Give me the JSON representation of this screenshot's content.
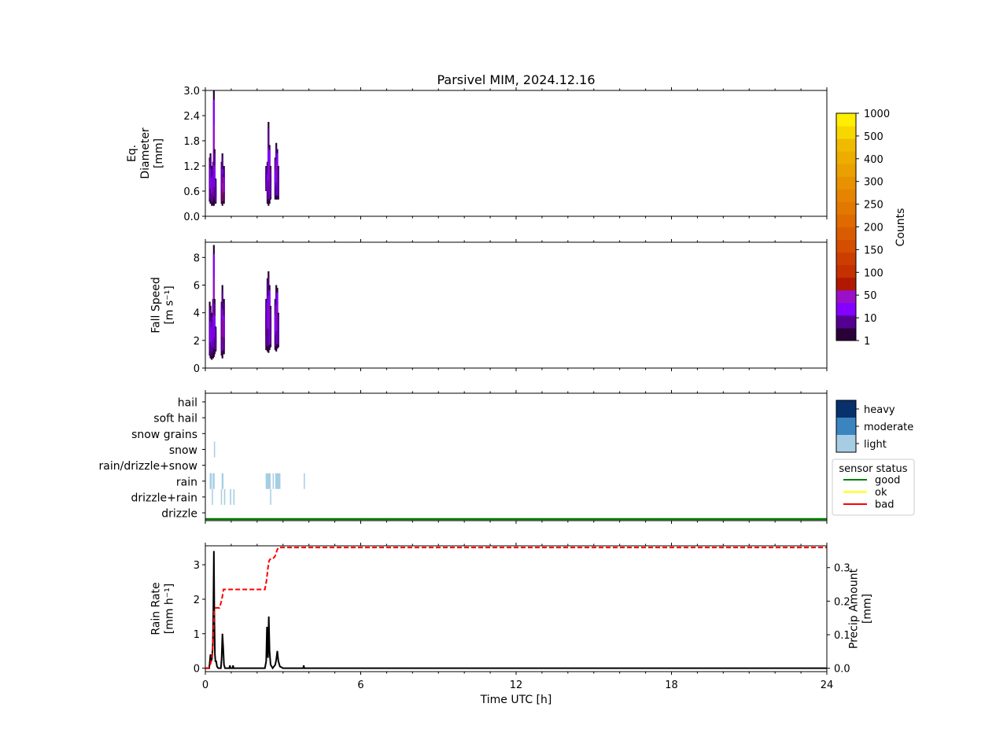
{
  "title": "Parsivel MIM, 2024.12.16",
  "colors": {
    "counts_cmap": [
      "#2a0038",
      "#540090",
      "#8400ff",
      "#9a10c8",
      "#b01800",
      "#c43000",
      "#cc3e00",
      "#d44e00",
      "#da5c00",
      "#de6a00",
      "#e27800",
      "#e68400",
      "#e89200",
      "#eaa000",
      "#edac00",
      "#f0ba00",
      "#f6d800",
      "#ffee00"
    ],
    "intensity_light": "#a6cde4",
    "intensity_moderate": "#3a85c0",
    "intensity_heavy": "#08306b",
    "status_good": "#008000",
    "status_ok": "#ffff00",
    "status_bad": "#ff0000"
  },
  "chart_data": [
    {
      "type": "heatmap",
      "panel": "diameter",
      "ylabel": [
        "Eq.",
        "Diameter",
        "[mm]"
      ],
      "xlim": [
        0,
        24
      ],
      "ylim": [
        0,
        3.0
      ],
      "yticks": [
        "0.0",
        "0.6",
        "1.2",
        "1.8",
        "2.4",
        "3.0"
      ],
      "ytick_values": [
        0,
        0.6,
        1.2,
        1.8,
        2.4,
        3.0
      ],
      "columns": [
        {
          "x": 0.17,
          "y0": 0.35,
          "y1": 1.4,
          "level": 1
        },
        {
          "x": 0.2,
          "y0": 0.3,
          "y1": 1.5,
          "level": 2
        },
        {
          "x": 0.25,
          "y0": 0.25,
          "y1": 1.2,
          "level": 2
        },
        {
          "x": 0.28,
          "y0": 0.3,
          "y1": 1.0,
          "level": 4
        },
        {
          "x": 0.3,
          "y0": 0.25,
          "y1": 1.3,
          "level": 2
        },
        {
          "x": 0.33,
          "y0": 0.25,
          "y1": 3.0,
          "level": 3
        },
        {
          "x": 0.36,
          "y0": 0.3,
          "y1": 1.6,
          "level": 2
        },
        {
          "x": 0.4,
          "y0": 0.3,
          "y1": 0.9,
          "level": 1
        },
        {
          "x": 0.63,
          "y0": 0.3,
          "y1": 1.3,
          "level": 1
        },
        {
          "x": 0.66,
          "y0": 0.25,
          "y1": 1.5,
          "level": 2
        },
        {
          "x": 0.69,
          "y0": 0.3,
          "y1": 1.0,
          "level": 5
        },
        {
          "x": 0.72,
          "y0": 0.3,
          "y1": 1.2,
          "level": 2
        },
        {
          "x": 2.35,
          "y0": 0.6,
          "y1": 1.2,
          "level": 1
        },
        {
          "x": 2.4,
          "y0": 0.3,
          "y1": 1.3,
          "level": 2
        },
        {
          "x": 2.44,
          "y0": 0.25,
          "y1": 2.25,
          "level": 2
        },
        {
          "x": 2.48,
          "y0": 0.3,
          "y1": 1.7,
          "level": 3
        },
        {
          "x": 2.52,
          "y0": 0.4,
          "y1": 1.2,
          "level": 1
        },
        {
          "x": 2.7,
          "y0": 0.4,
          "y1": 1.4,
          "level": 2
        },
        {
          "x": 2.74,
          "y0": 0.4,
          "y1": 1.75,
          "level": 2
        },
        {
          "x": 2.78,
          "y0": 0.4,
          "y1": 1.6,
          "level": 3
        },
        {
          "x": 2.82,
          "y0": 0.4,
          "y1": 1.2,
          "level": 1
        }
      ]
    },
    {
      "type": "heatmap",
      "panel": "fallspeed",
      "ylabel": [
        "Fall Speed",
        "[m s⁻¹]"
      ],
      "xlim": [
        0,
        24
      ],
      "ylim": [
        0,
        9.1
      ],
      "yticks": [
        "0",
        "2",
        "4",
        "6",
        "8"
      ],
      "ytick_values": [
        0,
        2,
        4,
        6,
        8
      ],
      "columns": [
        {
          "x": 0.17,
          "y0": 0.9,
          "y1": 4.8,
          "level": 1
        },
        {
          "x": 0.2,
          "y0": 0.7,
          "y1": 4.5,
          "level": 2
        },
        {
          "x": 0.25,
          "y0": 0.6,
          "y1": 4.0,
          "level": 2
        },
        {
          "x": 0.28,
          "y0": 1.0,
          "y1": 3.5,
          "level": 3
        },
        {
          "x": 0.3,
          "y0": 0.7,
          "y1": 5.0,
          "level": 2
        },
        {
          "x": 0.33,
          "y0": 0.8,
          "y1": 8.9,
          "level": 3
        },
        {
          "x": 0.36,
          "y0": 1.0,
          "y1": 5.0,
          "level": 2
        },
        {
          "x": 0.4,
          "y0": 1.2,
          "y1": 3.0,
          "level": 1
        },
        {
          "x": 0.63,
          "y0": 0.9,
          "y1": 4.8,
          "level": 1
        },
        {
          "x": 0.66,
          "y0": 0.7,
          "y1": 6.0,
          "level": 2
        },
        {
          "x": 0.69,
          "y0": 1.0,
          "y1": 4.5,
          "level": 4
        },
        {
          "x": 0.72,
          "y0": 1.0,
          "y1": 5.0,
          "level": 2
        },
        {
          "x": 2.35,
          "y0": 1.3,
          "y1": 5.0,
          "level": 1
        },
        {
          "x": 2.4,
          "y0": 1.2,
          "y1": 6.5,
          "level": 2
        },
        {
          "x": 2.44,
          "y0": 1.1,
          "y1": 7.0,
          "level": 2
        },
        {
          "x": 2.48,
          "y0": 1.3,
          "y1": 6.0,
          "level": 3
        },
        {
          "x": 2.52,
          "y0": 1.5,
          "y1": 4.5,
          "level": 1
        },
        {
          "x": 2.7,
          "y0": 1.3,
          "y1": 5.0,
          "level": 2
        },
        {
          "x": 2.74,
          "y0": 1.2,
          "y1": 6.0,
          "level": 2
        },
        {
          "x": 2.78,
          "y0": 1.4,
          "y1": 5.8,
          "level": 3
        },
        {
          "x": 2.82,
          "y0": 1.5,
          "y1": 4.0,
          "level": 1
        }
      ]
    },
    {
      "type": "heatmap",
      "panel": "weather",
      "xlim": [
        0,
        24
      ],
      "categories": [
        "hail",
        "soft hail",
        "snow grains",
        "snow",
        "rain/drizzle+snow",
        "rain",
        "drizzle+rain",
        "drizzle"
      ],
      "events": [
        {
          "cat": "snow",
          "x0": 0.33,
          "x1": 0.36,
          "intensity": "light"
        },
        {
          "cat": "rain",
          "x0": 0.17,
          "x1": 0.25,
          "intensity": "light"
        },
        {
          "cat": "rain",
          "x0": 0.28,
          "x1": 0.36,
          "intensity": "light"
        },
        {
          "cat": "rain",
          "x0": 0.63,
          "x1": 0.7,
          "intensity": "light"
        },
        {
          "cat": "rain",
          "x0": 2.33,
          "x1": 2.52,
          "intensity": "light"
        },
        {
          "cat": "rain",
          "x0": 2.6,
          "x1": 2.64,
          "intensity": "light"
        },
        {
          "cat": "rain",
          "x0": 2.7,
          "x1": 2.9,
          "intensity": "light"
        },
        {
          "cat": "rain",
          "x0": 3.8,
          "x1": 3.84,
          "intensity": "light"
        },
        {
          "cat": "drizzle+rain",
          "x0": 0.25,
          "x1": 0.29,
          "intensity": "light"
        },
        {
          "cat": "drizzle+rain",
          "x0": 0.6,
          "x1": 0.64,
          "intensity": "light"
        },
        {
          "cat": "drizzle+rain",
          "x0": 0.72,
          "x1": 0.77,
          "intensity": "light"
        },
        {
          "cat": "drizzle+rain",
          "x0": 0.95,
          "x1": 1.0,
          "intensity": "light"
        },
        {
          "cat": "drizzle+rain",
          "x0": 1.08,
          "x1": 1.13,
          "intensity": "light"
        },
        {
          "cat": "drizzle+rain",
          "x0": 2.5,
          "x1": 2.54,
          "intensity": "light"
        }
      ],
      "sensor_status": "good",
      "intensity_legend": [
        "heavy",
        "moderate",
        "light"
      ],
      "status_legend_title": "sensor status",
      "status_legend": [
        "good",
        "ok",
        "bad"
      ]
    },
    {
      "type": "line",
      "panel": "rainrate",
      "xlabel": "Time UTC [h]",
      "xlim": [
        0,
        24
      ],
      "xticks": [
        "0",
        "6",
        "12",
        "18",
        "24"
      ],
      "xtick_values": [
        0,
        6,
        12,
        18,
        24
      ],
      "ylabel": [
        "Rain Rate",
        "[mm h⁻¹]"
      ],
      "ylim": [
        -0.1,
        3.55
      ],
      "yticks": [
        "0",
        "1",
        "2",
        "3"
      ],
      "ytick_values": [
        0,
        1,
        2,
        3
      ],
      "y2label": [
        "Precip Amount",
        "[mm]"
      ],
      "y2lim": [
        -0.01,
        0.365
      ],
      "y2ticks": [
        "0.0",
        "0.1",
        "0.2",
        "0.3"
      ],
      "y2tick_values": [
        0,
        0.1,
        0.2,
        0.3
      ],
      "rain_rate": {
        "x": [
          0,
          0.15,
          0.2,
          0.23,
          0.26,
          0.29,
          0.31,
          0.33,
          0.35,
          0.37,
          0.39,
          0.42,
          0.45,
          0.5,
          0.6,
          0.63,
          0.66,
          0.69,
          0.72,
          0.76,
          0.85,
          0.93,
          0.95,
          0.97,
          1.05,
          1.07,
          1.09,
          1.2,
          2.3,
          2.35,
          2.38,
          2.42,
          2.45,
          2.48,
          2.52,
          2.56,
          2.6,
          2.65,
          2.7,
          2.74,
          2.78,
          2.82,
          2.88,
          3.0,
          3.78,
          3.8,
          3.82,
          4.0,
          24
        ],
        "y": [
          0,
          0,
          0.4,
          0.2,
          0.3,
          0.7,
          1.7,
          3.4,
          1.4,
          0.4,
          0.2,
          0.2,
          0.05,
          0,
          0,
          0.3,
          1.0,
          0.6,
          0.1,
          0,
          0,
          0,
          0.08,
          0,
          0,
          0.08,
          0,
          0,
          0,
          0.2,
          1.2,
          0.3,
          1.5,
          0.5,
          0.1,
          0.05,
          0,
          0.05,
          0.1,
          0.25,
          0.5,
          0.2,
          0.05,
          0,
          0,
          0.08,
          0,
          0,
          0
        ]
      },
      "precip_amount": {
        "x": [
          0,
          0.1,
          0.17,
          0.22,
          0.25,
          0.28,
          0.31,
          0.34,
          0.4,
          0.55,
          0.62,
          0.66,
          0.7,
          0.75,
          2.3,
          2.36,
          2.42,
          2.46,
          2.5,
          2.6,
          2.7,
          2.76,
          2.82,
          2.88,
          4.0,
          24
        ],
        "y": [
          0,
          0,
          0.005,
          0.02,
          0.03,
          0.05,
          0.1,
          0.17,
          0.18,
          0.18,
          0.2,
          0.215,
          0.235,
          0.235,
          0.235,
          0.26,
          0.3,
          0.32,
          0.325,
          0.325,
          0.335,
          0.35,
          0.36,
          0.36,
          0.36,
          0.36
        ]
      }
    },
    {
      "type": "colorbar",
      "label": "Counts",
      "ticks": [
        "1",
        "10",
        "50",
        "100",
        "150",
        "200",
        "250",
        "300",
        "400",
        "500",
        "1000"
      ],
      "tick_segments": [
        0,
        2,
        4,
        6,
        8,
        10,
        12,
        14,
        16,
        18,
        20
      ]
    }
  ]
}
